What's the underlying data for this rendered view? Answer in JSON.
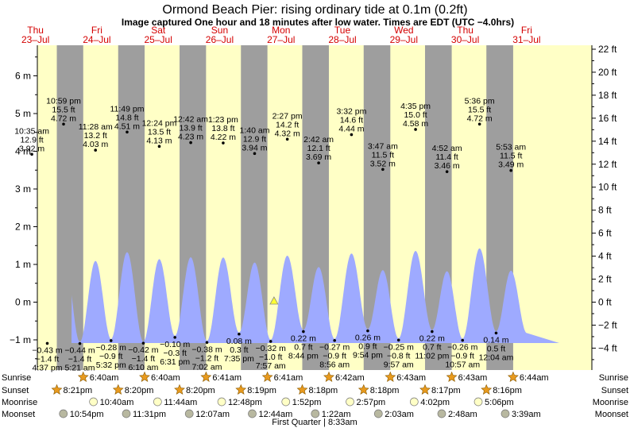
{
  "chart_data": {
    "type": "area",
    "title": "Ormond Beach Pier: rising  ordinary tide at 0.1m (0.2ft)",
    "subtitle": "Image captured One hour and 18 minutes after low water. Times are EDT (UTC −4.0hrs)",
    "y_left_unit": "m",
    "y_right_unit": "ft",
    "y_left_ticks": [
      "6 m",
      "5 m",
      "4 m",
      "3 m",
      "2 m",
      "1 m",
      "0 m",
      "−1 m"
    ],
    "y_right_ticks": [
      "22 ft",
      "20 ft",
      "18 ft",
      "16 ft",
      "14 ft",
      "12 ft",
      "10 ft",
      "8 ft",
      "6 ft",
      "4 ft",
      "2 ft",
      "0 ft",
      "−2 ft",
      "−4 ft"
    ],
    "days": [
      {
        "dow": "Thu",
        "date": "23–Jul"
      },
      {
        "dow": "Fri",
        "date": "24–Jul"
      },
      {
        "dow": "Sat",
        "date": "25–Jul"
      },
      {
        "dow": "Sun",
        "date": "26–Jul"
      },
      {
        "dow": "Mon",
        "date": "27–Jul"
      },
      {
        "dow": "Tue",
        "date": "28–Jul"
      },
      {
        "dow": "Wed",
        "date": "29–Jul"
      },
      {
        "dow": "Thu",
        "date": "30–Jul"
      },
      {
        "dow": "Fri",
        "date": "31–Jul"
      }
    ],
    "extremes": [
      {
        "type": "low",
        "day": 0,
        "time": "4:37 pm",
        "ft": "−1.4 ft",
        "m": "−0.43 m",
        "height_m": -0.43
      },
      {
        "type": "high",
        "day": 0,
        "time": "10:35 am",
        "ft": "12.9 ft",
        "m": "3.92 m",
        "height_m": 3.92
      },
      {
        "type": "high",
        "day": 0,
        "time": "10:59 pm",
        "ft": "15.5 ft",
        "m": "4.72 m",
        "height_m": 4.72
      },
      {
        "type": "low",
        "day": 1,
        "time": "5:21 am",
        "ft": "−1.4 ft",
        "m": "−0.44 m",
        "height_m": -0.44
      },
      {
        "type": "high",
        "day": 1,
        "time": "11:28 am",
        "ft": "13.2 ft",
        "m": "4.03 m",
        "height_m": 4.03
      },
      {
        "type": "low",
        "day": 1,
        "time": "5:32 pm",
        "ft": "−0.9 ft",
        "m": "−0.28 m",
        "height_m": -0.28
      },
      {
        "type": "high",
        "day": 1,
        "time": "11:49 pm",
        "ft": "14.8 ft",
        "m": "4.51 m",
        "height_m": 4.51
      },
      {
        "type": "low",
        "day": 2,
        "time": "6:10 am",
        "ft": "−1.4 ft",
        "m": "−0.42 m",
        "height_m": -0.42
      },
      {
        "type": "high",
        "day": 2,
        "time": "12:24 pm",
        "ft": "13.5 ft",
        "m": "4.13 m",
        "height_m": 4.13
      },
      {
        "type": "low",
        "day": 2,
        "time": "6:31 pm",
        "ft": "−0.3 ft",
        "m": "−0.10 m",
        "height_m": -0.1
      },
      {
        "type": "high",
        "day": 3,
        "time": "12:42 am",
        "ft": "13.9 ft",
        "m": "4.23 m",
        "height_m": 4.23
      },
      {
        "type": "low",
        "day": 3,
        "time": "7:02 am",
        "ft": "−1.2 ft",
        "m": "−0.38 m",
        "height_m": -0.38
      },
      {
        "type": "high",
        "day": 3,
        "time": "1:23 pm",
        "ft": "13.8 ft",
        "m": "4.22 m",
        "height_m": 4.22
      },
      {
        "type": "low",
        "day": 3,
        "time": "7:35 pm",
        "ft": "0.3 ft",
        "m": "0.08 m",
        "height_m": 0.08
      },
      {
        "type": "high",
        "day": 4,
        "time": "1:40 am",
        "ft": "12.9 ft",
        "m": "3.94 m",
        "height_m": 3.94
      },
      {
        "type": "low",
        "day": 4,
        "time": "7:57 am",
        "ft": "−1.0 ft",
        "m": "−0.32 m",
        "height_m": -0.32
      },
      {
        "type": "high",
        "day": 4,
        "time": "2:27 pm",
        "ft": "14.2 ft",
        "m": "4.32 m",
        "height_m": 4.32
      },
      {
        "type": "low",
        "day": 4,
        "time": "8:44 pm",
        "ft": "0.7 ft",
        "m": "0.22 m",
        "height_m": 0.22
      },
      {
        "type": "high",
        "day": 5,
        "time": "2:42 am",
        "ft": "12.1 ft",
        "m": "3.69 m",
        "height_m": 3.69
      },
      {
        "type": "low",
        "day": 5,
        "time": "8:56 am",
        "ft": "−0.9 ft",
        "m": "−0.27 m",
        "height_m": -0.27
      },
      {
        "type": "high",
        "day": 5,
        "time": "3:32 pm",
        "ft": "14.6 ft",
        "m": "4.44 m",
        "height_m": 4.44
      },
      {
        "type": "low",
        "day": 5,
        "time": "9:54 pm",
        "ft": "0.9 ft",
        "m": "0.26 m",
        "height_m": 0.26
      },
      {
        "type": "high",
        "day": 6,
        "time": "3:47 am",
        "ft": "11.5 ft",
        "m": "3.52 m",
        "height_m": 3.52
      },
      {
        "type": "low",
        "day": 6,
        "time": "9:57 am",
        "ft": "−0.8 ft",
        "m": "−0.25 m",
        "height_m": -0.25
      },
      {
        "type": "high",
        "day": 6,
        "time": "4:35 pm",
        "ft": "15.0 ft",
        "m": "4.58 m",
        "height_m": 4.58
      },
      {
        "type": "low",
        "day": 6,
        "time": "11:02 pm",
        "ft": "0.7 ft",
        "m": "0.22 m",
        "height_m": 0.22
      },
      {
        "type": "high",
        "day": 7,
        "time": "4:52 am",
        "ft": "11.4 ft",
        "m": "3.46 m",
        "height_m": 3.46
      },
      {
        "type": "low",
        "day": 7,
        "time": "10:57 am",
        "ft": "−0.9 ft",
        "m": "−0.26 m",
        "height_m": -0.26
      },
      {
        "type": "high",
        "day": 7,
        "time": "5:36 pm",
        "ft": "15.5 ft",
        "m": "4.72 m",
        "height_m": 4.72
      },
      {
        "type": "low",
        "day": 8,
        "time": "12:04 am",
        "ft": "0.5 ft",
        "m": "0.14 m",
        "height_m": 0.14
      },
      {
        "type": "high",
        "day": 8,
        "time": "5:53 am",
        "ft": "11.5 ft",
        "m": "3.49 m",
        "height_m": 3.49
      }
    ],
    "current": {
      "day": 4,
      "time": "9:15 am",
      "height_m": 0.1
    },
    "nights": [
      {
        "start_day": 0,
        "start": "8:21 pm",
        "end_day": 1,
        "end": "6:40 am"
      },
      {
        "start_day": 1,
        "start": "8:20 pm",
        "end_day": 2,
        "end": "6:40 am"
      },
      {
        "start_day": 2,
        "start": "8:20 pm",
        "end_day": 3,
        "end": "6:41 am"
      },
      {
        "start_day": 3,
        "start": "8:19 pm",
        "end_day": 4,
        "end": "6:41 am"
      },
      {
        "start_day": 4,
        "start": "8:18 pm",
        "end_day": 5,
        "end": "6:42 am"
      },
      {
        "start_day": 5,
        "start": "8:18 pm",
        "end_day": 6,
        "end": "6:43 am"
      },
      {
        "start_day": 6,
        "start": "8:17 pm",
        "end_day": 7,
        "end": "6:43 am"
      },
      {
        "start_day": 7,
        "start": "8:16 pm",
        "end_day": 8,
        "end": "6:44 am"
      }
    ],
    "astro_row_labels": [
      "Sunrise",
      "Sunset",
      "Moonrise",
      "Moonset"
    ],
    "sunrise": [
      {
        "day": 1,
        "time": "6:40am"
      },
      {
        "day": 2,
        "time": "6:40am"
      },
      {
        "day": 3,
        "time": "6:41am"
      },
      {
        "day": 4,
        "time": "6:41am"
      },
      {
        "day": 5,
        "time": "6:42am"
      },
      {
        "day": 6,
        "time": "6:43am"
      },
      {
        "day": 7,
        "time": "6:43am"
      },
      {
        "day": 8,
        "time": "6:44am"
      }
    ],
    "sunset": [
      {
        "day": 0,
        "time": "8:21pm"
      },
      {
        "day": 1,
        "time": "8:20pm"
      },
      {
        "day": 2,
        "time": "8:20pm"
      },
      {
        "day": 3,
        "time": "8:19pm"
      },
      {
        "day": 4,
        "time": "8:18pm"
      },
      {
        "day": 5,
        "time": "8:18pm"
      },
      {
        "day": 6,
        "time": "8:17pm"
      },
      {
        "day": 7,
        "time": "8:16pm"
      }
    ],
    "moonrise": [
      {
        "day": 1,
        "time": "10:40am"
      },
      {
        "day": 2,
        "time": "11:44am"
      },
      {
        "day": 3,
        "time": "12:48pm"
      },
      {
        "day": 4,
        "time": "1:52pm"
      },
      {
        "day": 5,
        "time": "2:57pm"
      },
      {
        "day": 6,
        "time": "4:02pm"
      },
      {
        "day": 7,
        "time": "5:06pm"
      }
    ],
    "moonset": [
      {
        "day": 0,
        "time": "10:54pm"
      },
      {
        "day": 1,
        "time": "11:31pm"
      },
      {
        "day": 3,
        "time": "12:07am"
      },
      {
        "day": 4,
        "time": "12:44am"
      },
      {
        "day": 5,
        "time": "1:22am"
      },
      {
        "day": 6,
        "time": "2:03am"
      },
      {
        "day": 7,
        "time": "2:48am"
      },
      {
        "day": 8,
        "time": "3:39am"
      }
    ],
    "moon_phase": {
      "label": "First Quarter",
      "time": "8:33am"
    },
    "colors": {
      "day_bg": "#ffffc6",
      "night_bg": "#9e9e9e",
      "water": "#9eaaff",
      "day_label": "#d40000",
      "sun_marker": "#e89a1e",
      "moonrise_marker": "#ffffc6",
      "moonset_marker": "#b8b8a0",
      "current_marker": "#ffff33"
    }
  }
}
